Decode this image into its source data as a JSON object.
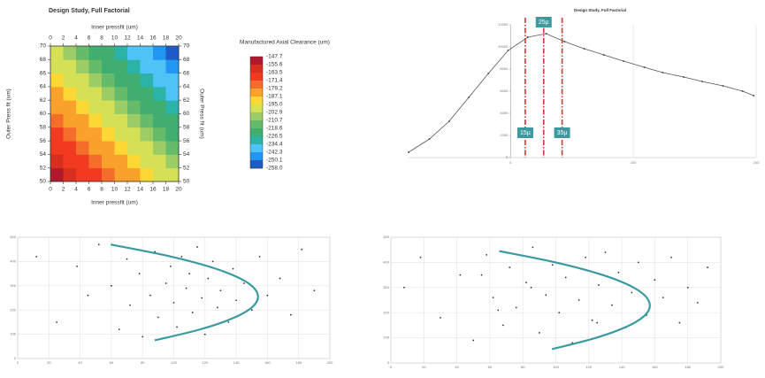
{
  "chart_data": [
    {
      "type": "contour",
      "title": "Design Study, Full Factorial",
      "xlabel": "Inner pressfit (um)",
      "ylabel": "Outer Press fit (um)",
      "xlim": [
        0,
        20
      ],
      "ylim": [
        50,
        70
      ],
      "xticks": [
        0,
        2,
        4,
        6,
        8,
        10,
        12,
        14,
        16,
        18,
        20
      ],
      "yticks": [
        50,
        52,
        54,
        56,
        58,
        60,
        62,
        64,
        66,
        68,
        70
      ],
      "x": [
        1,
        3,
        5,
        7,
        9,
        11,
        13,
        15,
        17,
        19
      ],
      "y": [
        51,
        53,
        55,
        57,
        59,
        61,
        63,
        65,
        67,
        69
      ],
      "z": [
        [
          -153.2,
          -158.7,
          -164.2,
          -169.7,
          -175.3,
          -180.8,
          -186.3,
          -191.8,
          -197.3,
          -202.8
        ],
        [
          -158.7,
          -164.2,
          -169.7,
          -175.3,
          -180.8,
          -186.3,
          -191.8,
          -197.3,
          -202.8,
          -208.4
        ],
        [
          -164.2,
          -169.7,
          -175.3,
          -180.8,
          -186.3,
          -191.8,
          -197.3,
          -202.8,
          -208.4,
          -213.9
        ],
        [
          -169.7,
          -175.3,
          -180.8,
          -186.3,
          -191.8,
          -197.3,
          -202.8,
          -208.4,
          -213.9,
          -219.4
        ],
        [
          -175.3,
          -180.8,
          -186.3,
          -191.8,
          -197.3,
          -202.8,
          -208.4,
          -213.9,
          -219.4,
          -224.9
        ],
        [
          -180.8,
          -186.3,
          -191.8,
          -197.3,
          -202.8,
          -208.4,
          -213.9,
          -219.4,
          -224.9,
          -230.4
        ],
        [
          -186.3,
          -191.8,
          -197.3,
          -202.8,
          -208.4,
          -213.9,
          -219.4,
          -224.9,
          -230.4,
          -235.9
        ],
        [
          -191.8,
          -197.3,
          -202.8,
          -208.4,
          -213.9,
          -219.4,
          -224.9,
          -230.4,
          -235.9,
          -241.4
        ],
        [
          -197.3,
          -202.8,
          -208.4,
          -213.9,
          -219.4,
          -224.9,
          -230.4,
          -235.9,
          -241.4,
          -247.0
        ],
        [
          -202.8,
          -208.4,
          -213.9,
          -219.4,
          -224.9,
          -230.4,
          -235.9,
          -241.4,
          -247.0,
          -252.5
        ]
      ],
      "colorbar": {
        "title": "Manufactured Axial Clearance (um)",
        "levels": [
          -147.7,
          -155.6,
          -163.5,
          -171.4,
          -179.2,
          -187.1,
          {
            "value": -195,
            "label": "-195.0"
          },
          -202.9,
          -210.7,
          -218.6,
          -226.5,
          -234.4,
          -242.3,
          -250.1,
          {
            "value": -258,
            "label": "-258.0"
          }
        ],
        "colors": [
          "#b2182b",
          "#d7301f",
          "#f03b20",
          "#f46d2a",
          "#f9a12b",
          "#fdd835",
          "#d4e157",
          "#9ccc65",
          "#66bb6a",
          "#3fae6f",
          "#2bb3a8",
          "#4fc3f7",
          "#2196f3",
          "#1e5bc6"
        ]
      }
    },
    {
      "type": "line",
      "title": "Design Study, Full Factorial",
      "x": [
        -83,
        -66,
        -50,
        -34,
        -18,
        -2,
        14,
        29,
        44,
        60,
        76,
        92,
        109,
        124,
        141,
        156,
        173,
        189,
        198
      ],
      "values": [
        480,
        1680,
        3280,
        5440,
        7600,
        9680,
        10880,
        11200,
        10480,
        9840,
        9280,
        8720,
        8160,
        7680,
        7280,
        6880,
        6480,
        6000,
        5600
      ],
      "color": "#555555",
      "xlim": [
        -83,
        200
      ],
      "ylim": [
        0,
        12000
      ],
      "xticks": [
        0,
        100,
        200
      ],
      "yticks": [
        0,
        2000,
        4000,
        6000,
        8000,
        10000,
        12000
      ],
      "vlines": [
        {
          "x": 12,
          "label": "15µ"
        },
        {
          "x": 27,
          "label": "25µ"
        },
        {
          "x": 42,
          "label": "35µ"
        }
      ],
      "vline_color": "#e03030",
      "label_color": "#3a9aa0"
    },
    {
      "type": "scatter",
      "color": "#333333",
      "xlim": [
        0,
        200
      ],
      "ylim": [
        0,
        500
      ],
      "xticks": [
        0,
        20,
        40,
        60,
        80,
        100,
        120,
        140,
        160,
        180,
        200
      ],
      "yticks": [
        0,
        100,
        200,
        300,
        400,
        500
      ],
      "grid": true,
      "x": [
        12,
        25,
        38,
        45,
        52,
        60,
        65,
        70,
        72,
        78,
        80,
        85,
        88,
        90,
        95,
        98,
        100,
        102,
        105,
        108,
        110,
        112,
        115,
        118,
        120,
        122,
        125,
        128,
        130,
        135,
        138,
        140,
        145,
        150,
        155,
        160,
        168,
        175,
        182,
        190
      ],
      "y": [
        420,
        150,
        380,
        260,
        470,
        300,
        120,
        410,
        220,
        350,
        90,
        260,
        440,
        170,
        310,
        380,
        230,
        130,
        420,
        290,
        350,
        190,
        460,
        250,
        100,
        330,
        400,
        210,
        280,
        150,
        370,
        240,
        310,
        200,
        420,
        260,
        330,
        180,
        450,
        280
      ],
      "curve": {
        "color": "#3a9aa0",
        "x": [
          59.6,
          98.4,
          127.0,
          145.4,
          153.5,
          151.5,
          139.2,
          116.8,
          87.8
        ],
        "y": [
          470,
          420,
          370,
          320,
          270,
          220,
          170,
          120,
          75
        ]
      }
    },
    {
      "type": "scatter",
      "color": "#333333",
      "xlim": [
        0,
        200
      ],
      "ylim": [
        0,
        500
      ],
      "xticks": [
        0,
        20,
        40,
        60,
        80,
        100,
        120,
        140,
        160,
        180,
        200
      ],
      "yticks": [
        0,
        100,
        200,
        300,
        400,
        500
      ],
      "grid": true,
      "x": [
        8,
        18,
        30,
        42,
        50,
        58,
        62,
        68,
        72,
        76,
        82,
        86,
        90,
        94,
        98,
        102,
        106,
        110,
        114,
        118,
        122,
        126,
        130,
        134,
        138,
        142,
        146,
        150,
        155,
        160,
        165,
        170,
        175,
        180,
        186,
        192,
        55,
        65,
        85,
        125
      ],
      "y": [
        300,
        420,
        180,
        350,
        90,
        430,
        260,
        150,
        380,
        220,
        320,
        460,
        120,
        270,
        390,
        200,
        340,
        80,
        250,
        420,
        170,
        310,
        440,
        230,
        360,
        140,
        280,
        400,
        190,
        330,
        260,
        420,
        160,
        300,
        240,
        380,
        350,
        210,
        300,
        160
      ],
      "curve": {
        "color": "#3a9aa0",
        "x": [
          65.7,
          99.8,
          128.3,
          147.1,
          156.1,
          155.4,
          144.8,
          124.4,
          97.7
        ],
        "y": [
          445,
          400,
          350,
          300,
          250,
          200,
          150,
          100,
          55
        ]
      }
    }
  ]
}
